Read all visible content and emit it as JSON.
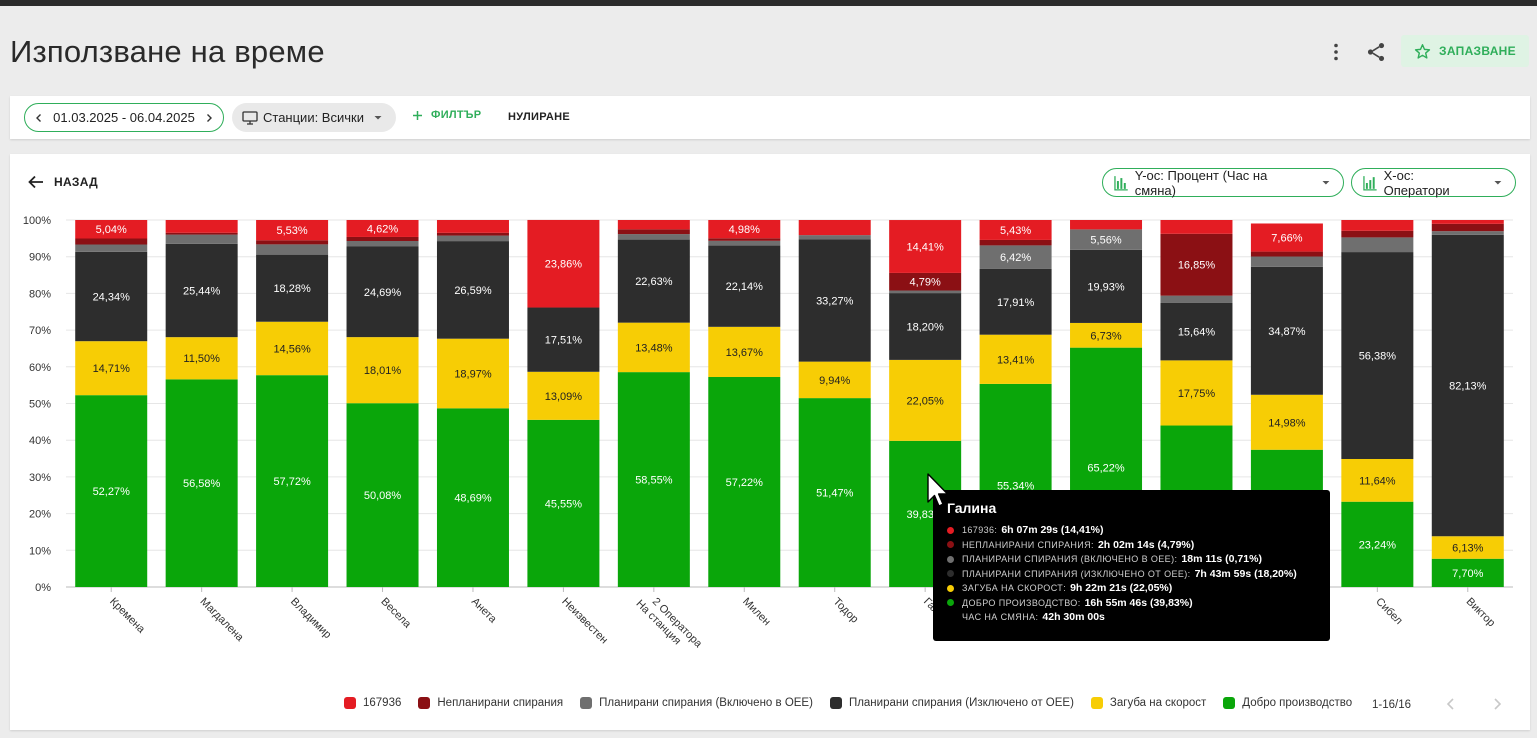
{
  "header": {
    "title": "Използване на време",
    "save_label": "ЗАПАЗВАНЕ"
  },
  "filters": {
    "date_range": "01.03.2025 - 06.04.2025",
    "stations": "Станции: Всички",
    "add_filter": "ФИЛТЪР",
    "reset": "НУЛИРАНЕ"
  },
  "panel": {
    "back": "НАЗАД",
    "y_axis": "Y-ос: Процент (Час на смяна)",
    "x_axis": "X-ос: Оператори"
  },
  "colors": {
    "accent": "#2fae5a",
    "s167936": "#e41c23",
    "unplanned": "#8b1014",
    "planned_in": "#6f6f6f",
    "planned_out": "#2d2d2d",
    "speed_loss": "#f7cd05",
    "good": "#0aa60a"
  },
  "chart_data": {
    "type": "bar",
    "stacked": true,
    "ylim": [
      0,
      100
    ],
    "yticks": [
      "0%",
      "10%",
      "20%",
      "30%",
      "40%",
      "50%",
      "60%",
      "70%",
      "80%",
      "90%",
      "100%"
    ],
    "categories": [
      "Кремена",
      "Магдалена",
      "Владимир",
      "Весела",
      "Анета",
      "Неизвестен",
      "2 Оператора На станция",
      "Милен",
      "Тодор",
      "Галина",
      "",
      "",
      "",
      "",
      "Сибел",
      "Виктор"
    ],
    "series": [
      {
        "name": "Добро производство",
        "color": "#0aa60a",
        "values": [
          52.27,
          56.58,
          57.72,
          50.08,
          48.69,
          45.55,
          58.55,
          57.22,
          51.47,
          39.83,
          55.34,
          65.22,
          44.0,
          37.4,
          23.24,
          7.7
        ],
        "labels": [
          "52,27%",
          "56,58%",
          "57,72%",
          "50,08%",
          "48,69%",
          "45,55%",
          "58,55%",
          "57,22%",
          "51,47%",
          "39,83%",
          "55,34%",
          "65,22%",
          "",
          "",
          "23,24%",
          "7,70%"
        ]
      },
      {
        "name": "Загуба на скорост",
        "color": "#f7cd05",
        "values": [
          14.71,
          11.5,
          14.56,
          18.01,
          18.97,
          13.09,
          13.48,
          13.67,
          9.94,
          22.05,
          13.41,
          6.73,
          17.75,
          14.98,
          11.64,
          6.13
        ],
        "labels": [
          "14,71%",
          "11,50%",
          "14,56%",
          "18,01%",
          "18,97%",
          "13,09%",
          "13,48%",
          "13,67%",
          "9,94%",
          "22,05%",
          "13,41%",
          "6,73%",
          "17,75%",
          "14,98%",
          "11,64%",
          "6,13%"
        ]
      },
      {
        "name": "Планирани спирания (Изключено от OEE)",
        "color": "#2d2d2d",
        "values": [
          24.34,
          25.44,
          18.28,
          24.69,
          26.59,
          17.51,
          22.63,
          22.14,
          33.27,
          18.2,
          17.91,
          19.93,
          15.64,
          34.87,
          56.38,
          82.13
        ],
        "labels": [
          "24,34%",
          "25,44%",
          "18,28%",
          "24,69%",
          "26,59%",
          "17,51%",
          "22,63%",
          "22,14%",
          "33,27%",
          "18,20%",
          "17,91%",
          "19,93%",
          "15,64%",
          "34,87%",
          "56,38%",
          "82,13%"
        ]
      },
      {
        "name": "Планирани спирания (Включено в OEE)",
        "color": "#6f6f6f",
        "values": [
          2.0,
          2.5,
          2.8,
          1.5,
          1.5,
          0,
          1.5,
          1.3,
          1.2,
          0.71,
          6.42,
          5.56,
          2.0,
          2.8,
          4.0,
          1.0
        ],
        "labels": [
          "",
          "",
          "",
          "",
          "",
          "",
          "",
          "",
          "",
          "",
          "6,42%",
          "5,56%",
          "",
          "",
          "",
          ""
        ]
      },
      {
        "name": "Непланирани спирания",
        "color": "#8b1014",
        "values": [
          1.64,
          0.5,
          1.11,
          1.1,
          0.75,
          0,
          1.3,
          0.69,
          0,
          4.79,
          1.49,
          0,
          16.85,
          1.34,
          1.8,
          2.0
        ],
        "labels": [
          "",
          "",
          "",
          "",
          "",
          "",
          "",
          "",
          "",
          "4,79%",
          "",
          "",
          "16,85%",
          "",
          "",
          ""
        ]
      },
      {
        "name": "167936",
        "color": "#e41c23",
        "values": [
          5.04,
          3.48,
          5.53,
          4.62,
          3.5,
          23.86,
          2.54,
          4.98,
          4.12,
          14.41,
          5.43,
          2.56,
          3.76,
          7.66,
          2.94,
          1.04
        ],
        "labels": [
          "5,04%",
          "",
          "5,53%",
          "4,62%",
          "",
          "23,86%",
          "",
          "4,98%",
          "",
          "14,41%",
          "5,43%",
          "",
          "",
          "7,66%",
          "",
          ""
        ]
      }
    ]
  },
  "tooltip": {
    "title": "Галина",
    "rows": [
      {
        "color": "#e41c23",
        "label": "167936",
        "value": "6h 07m 29s (14,41%)"
      },
      {
        "color": "#8b1014",
        "label": "Непланирани спирания",
        "value": "2h 02m 14s (4,79%)"
      },
      {
        "color": "#6f6f6f",
        "label": "Планирани спирания (Включено в OEE)",
        "value": "18m 11s (0,71%)"
      },
      {
        "color": "#2d2d2d",
        "label": "Планирани спирания (Изключено от OEE)",
        "value": "7h 43m 59s (18,20%)"
      },
      {
        "color": "#f7cd05",
        "label": "Загуба на скорост",
        "value": "9h 22m 21s (22,05%)"
      },
      {
        "color": "#0aa60a",
        "label": "Добро производство",
        "value": "16h 55m 46s (39,83%)"
      },
      {
        "color": "",
        "label": "Час на смяна",
        "value": "42h 30m 00s"
      }
    ]
  },
  "legend": [
    {
      "label": "167936",
      "color": "#e41c23"
    },
    {
      "label": "Непланирани спирания",
      "color": "#8b1014"
    },
    {
      "label": "Планирани спирания (Включено в OEE)",
      "color": "#6f6f6f"
    },
    {
      "label": "Планирани спирания (Изключено от OEE)",
      "color": "#2d2d2d"
    },
    {
      "label": "Загуба на скорост",
      "color": "#f7cd05"
    },
    {
      "label": "Добро производство",
      "color": "#0aa60a"
    }
  ],
  "pagination": "1-16/16"
}
